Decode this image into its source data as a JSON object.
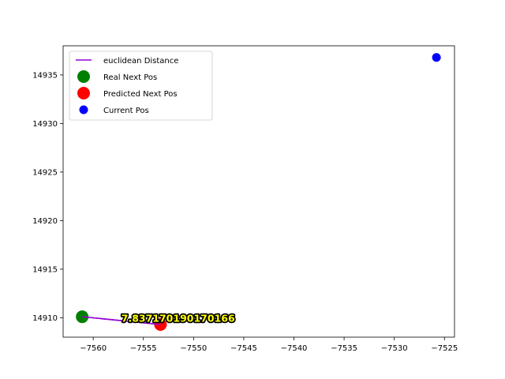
{
  "chart_data": {
    "type": "scatter",
    "title": "",
    "xlabel": "",
    "ylabel": "",
    "xlim": [
      -7563.0,
      -7524.0
    ],
    "ylim": [
      14908.0,
      14938.0
    ],
    "xticks": [
      -7560,
      -7555,
      -7550,
      -7545,
      -7540,
      -7535,
      -7530,
      -7525
    ],
    "yticks": [
      14910,
      14915,
      14920,
      14925,
      14930,
      14935
    ],
    "grid": false,
    "legend": {
      "position": "top-left",
      "entries": [
        {
          "label": "euclidean Distance",
          "kind": "line",
          "color": "#9400d3"
        },
        {
          "label": "Real Next Pos",
          "kind": "marker-large",
          "color": "#008000"
        },
        {
          "label": "Predicted Next Pos",
          "kind": "marker-large",
          "color": "#ff0000"
        },
        {
          "label": "Current Pos",
          "kind": "marker",
          "color": "#0000ff"
        }
      ]
    },
    "series": [
      {
        "name": "euclidean Distance",
        "type": "line",
        "color": "#9400d3",
        "points": [
          [
            -7561.1,
            14910.1
          ],
          [
            -7553.3,
            14909.3
          ]
        ]
      },
      {
        "name": "Real Next Pos",
        "type": "scatter",
        "color": "#008000",
        "points": [
          [
            -7561.1,
            14910.1
          ]
        ]
      },
      {
        "name": "Predicted Next Pos",
        "type": "scatter",
        "color": "#ff0000",
        "points": [
          [
            -7553.3,
            14909.3
          ]
        ]
      },
      {
        "name": "Current Pos",
        "type": "scatter",
        "color": "#0000ff",
        "points": [
          [
            -7525.8,
            14936.8
          ]
        ]
      }
    ],
    "annotations": [
      {
        "text": "7.837170190170166",
        "x": -7557.2,
        "y": 14910.0,
        "color": "#ffff00",
        "outline": "#000000"
      }
    ]
  }
}
